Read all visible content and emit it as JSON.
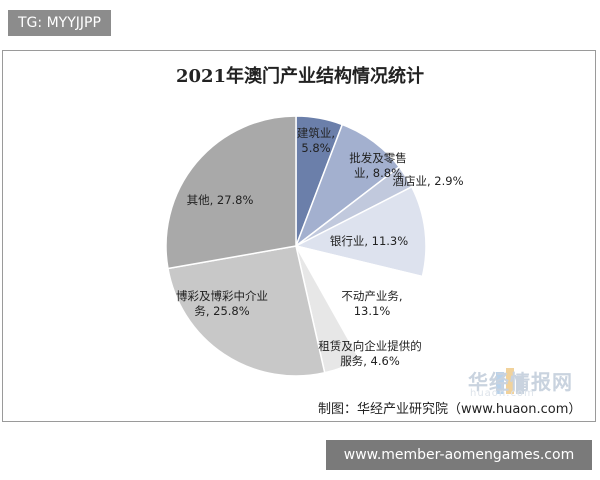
{
  "tag": "TG: MYYJJPP",
  "footer_link": "www.member-aomengames.com",
  "watermark": {
    "name": "华经情报网",
    "sub": "huaon.com"
  },
  "source": "制图：华经产业研究院（www.huaon.com）",
  "chart_data": {
    "type": "pie",
    "title": "2021年澳门产业结构情况统计",
    "unit": "%",
    "slices": [
      {
        "label": "建筑业",
        "value": 5.8,
        "display": "5.8%",
        "color": "#6b7faa"
      },
      {
        "label": "批发及零售业",
        "value": 8.8,
        "display": "8.8%",
        "color": "#a3b0cf"
      },
      {
        "label": "酒店业",
        "value": 2.9,
        "display": "2.9%",
        "color": "#c1c9dd"
      },
      {
        "label": "银行业",
        "value": 11.3,
        "display": "11.3%",
        "color": "#dde2ee"
      },
      {
        "label": "不动产业务",
        "value": 13.1,
        "display": "13.1%",
        "color": "#ffffff"
      },
      {
        "label": "租赁及向企业提供的服务",
        "value": 4.6,
        "display": "4.6%",
        "color": "#e7e7e7"
      },
      {
        "label": "博彩及博彩中介业务",
        "value": 25.8,
        "display": "25.8%",
        "color": "#c8c8c8"
      },
      {
        "label": "其他",
        "value": 27.8,
        "display": "27.8%",
        "color": "#a9a9a9"
      }
    ]
  }
}
